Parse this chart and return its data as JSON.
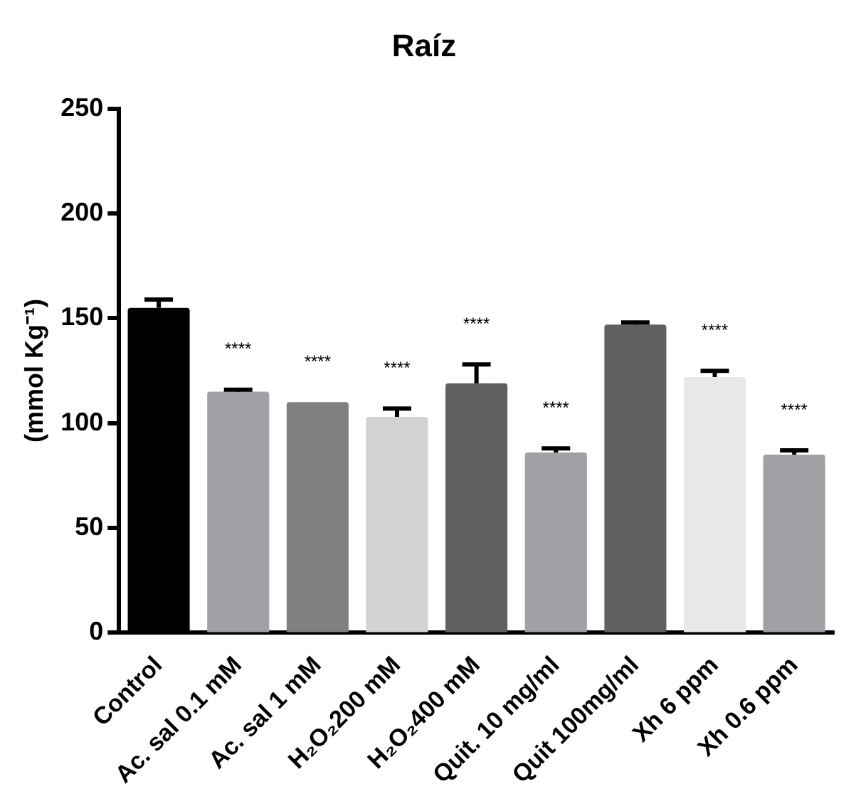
{
  "chart_data": {
    "type": "bar",
    "title": "Raíz",
    "ylabel": "(mmol Kg⁻¹)",
    "categories": [
      "Control",
      "Ac. sal 0.1 mM",
      "Ac. sal 1 mM",
      "H₂O₂200 mM",
      "H₂O₂400 mM",
      "Quit. 10 mg/ml",
      "Quit 100mg/ml",
      "Xh 6 ppm",
      "Xh 0.6 ppm"
    ],
    "values": [
      155,
      115,
      110,
      103,
      119,
      86,
      147,
      122,
      85
    ],
    "colors": [
      "#000000",
      "#a0a0a5",
      "#808080",
      "#d3d3d3",
      "#606060",
      "#a0a0a5",
      "#606060",
      "#e8e8e8",
      "#a0a0a5"
    ],
    "errors": [
      [
        155,
        159
      ],
      [
        115,
        116
      ],
      null,
      [
        103,
        107
      ],
      [
        119,
        128
      ],
      [
        86,
        88
      ],
      [
        147,
        148
      ],
      [
        122,
        125
      ],
      [
        85,
        87
      ]
    ],
    "ylim": [
      0,
      250
    ],
    "yticks": [
      0,
      50,
      100,
      150,
      200,
      250
    ],
    "grid": false,
    "legend": false,
    "value_labels": [
      null,
      "****",
      "****",
      "****",
      "****",
      "****",
      null,
      "****",
      "****"
    ]
  }
}
